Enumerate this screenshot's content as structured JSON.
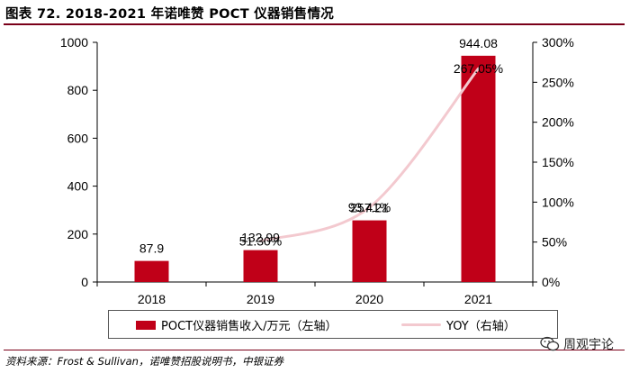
{
  "header": {
    "title": "图表 72. 2018-2021 年诺唯赞 POCT 仪器销售情况"
  },
  "footer": {
    "source": "资料来源：Frost & Sullivan，诺唯赞招股说明书，中银证券",
    "watermark": "周观宇论"
  },
  "chart_data": {
    "type": "bar",
    "categories": [
      "2018",
      "2019",
      "2020",
      "2021"
    ],
    "series": [
      {
        "name": "POCT仪器销售收入/万元（左轴）",
        "type": "bar",
        "axis": "left",
        "values": [
          87.9,
          132.99,
          257.21,
          944.08
        ],
        "labels": [
          "87.9",
          "132.99",
          "257.21",
          "944.08"
        ],
        "color": "#c00018"
      },
      {
        "name": "YOY（右轴）",
        "type": "line",
        "axis": "right",
        "values": [
          null,
          51.3,
          93.41,
          267.05
        ],
        "labels": [
          "",
          "51.30%",
          "93.41%",
          "267.05%"
        ],
        "color": "#f3c9cf"
      }
    ],
    "left_axis": {
      "ylim": [
        0,
        1000
      ],
      "ticks": [
        "0",
        "200",
        "400",
        "600",
        "800",
        "1000"
      ]
    },
    "right_axis": {
      "ylim": [
        0,
        300
      ],
      "ticks": [
        "0%",
        "50%",
        "100%",
        "150%",
        "200%",
        "250%",
        "300%"
      ]
    },
    "grid": false,
    "legend_position": "bottom"
  }
}
